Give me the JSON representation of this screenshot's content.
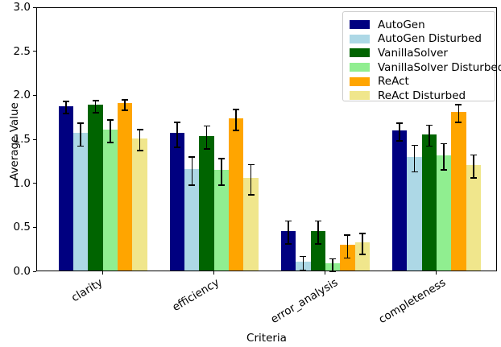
{
  "chart_data": {
    "type": "bar",
    "title": "",
    "xlabel": "Criteria",
    "ylabel": "Average Value",
    "ylim": [
      0,
      3.0
    ],
    "yticks": [
      "0.0",
      "0.5",
      "1.0",
      "1.5",
      "2.0",
      "2.5",
      "3.0"
    ],
    "categories": [
      "clarity",
      "efficiency",
      "error_analysis",
      "completeness"
    ],
    "grid": false,
    "legend_position": "upper-right",
    "axis_color": "#000000",
    "error_bar_color": "#000000",
    "legend_border_color": "#cccccc",
    "legend_background": "#ffffff",
    "series": [
      {
        "name": "AutoGen",
        "color": "#000080",
        "values": [
          1.87,
          1.56,
          0.45,
          1.59
        ],
        "errors": [
          0.07,
          0.14,
          0.13,
          0.1
        ]
      },
      {
        "name": "AutoGen Disturbed",
        "color": "#ADD8E6",
        "values": [
          1.56,
          1.15,
          0.1,
          1.29
        ],
        "errors": [
          0.13,
          0.16,
          0.08,
          0.15
        ]
      },
      {
        "name": "VanillaSolver",
        "color": "#006400",
        "values": [
          1.88,
          1.53,
          0.45,
          1.55
        ],
        "errors": [
          0.07,
          0.13,
          0.13,
          0.12
        ]
      },
      {
        "name": "VanillaSolver Disturbed",
        "color": "#90EE90",
        "values": [
          1.6,
          1.14,
          0.08,
          1.31
        ],
        "errors": [
          0.13,
          0.15,
          0.07,
          0.15
        ]
      },
      {
        "name": "ReAct",
        "color": "#FFA500",
        "values": [
          1.9,
          1.73,
          0.29,
          1.8
        ],
        "errors": [
          0.06,
          0.12,
          0.13,
          0.1
        ]
      },
      {
        "name": "ReAct Disturbed",
        "color": "#F0E68C",
        "values": [
          1.5,
          1.05,
          0.32,
          1.2
        ],
        "errors": [
          0.12,
          0.17,
          0.12,
          0.13
        ]
      }
    ]
  }
}
